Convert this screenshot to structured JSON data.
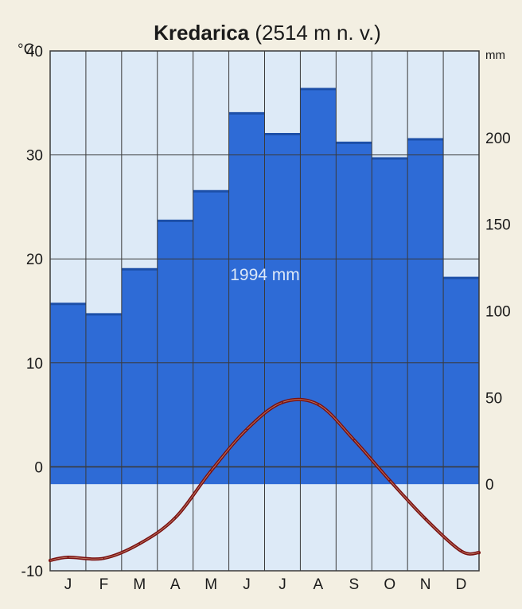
{
  "chart_data": {
    "type": "bar",
    "title_bold": "Kredarica",
    "title_rest": "(2514 m n. v.)",
    "left_unit": "°C",
    "right_unit": "mm",
    "annotation": "1994 mm",
    "categories": [
      "J",
      "F",
      "M",
      "A",
      "M",
      "J",
      "J",
      "A",
      "S",
      "O",
      "N",
      "D"
    ],
    "precip_ylim": [
      -50,
      250
    ],
    "temp_ylim": [
      -10,
      40
    ],
    "left_ticks": [
      -10,
      0,
      10,
      20,
      30,
      40
    ],
    "right_ticks": [
      0,
      50,
      100,
      150,
      200
    ],
    "series": [
      {
        "name": "",
        "axis": "right",
        "values": [
          104,
          98,
          124,
          152,
          169,
          214,
          202,
          228,
          197,
          188,
          199,
          119
        ]
      },
      {
        "name": "",
        "axis": "left",
        "type": "line",
        "values": [
          -8.7,
          -8.8,
          -7.4,
          -4.9,
          -0.4,
          3.6,
          6.2,
          6.0,
          2.6,
          -1.3,
          -5.0,
          -8.1
        ]
      }
    ],
    "colors": {
      "bar": "#2e6bd6",
      "bar_top": "#1c4fa8",
      "plot_bg": "#ddeaf7",
      "temp_line": "#7a1010",
      "temp_line_inner": "#f1c6a0",
      "annotation": "#dce8f7",
      "grid": "#3a3a3a",
      "background": "#f3efe2"
    }
  }
}
